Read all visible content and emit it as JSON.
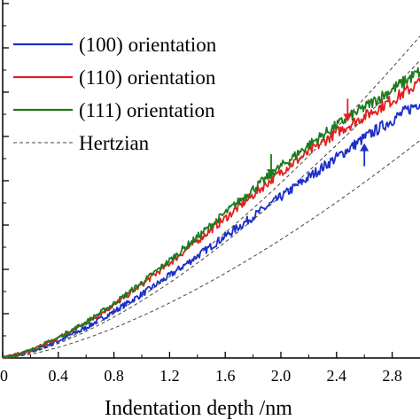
{
  "chart_data": {
    "type": "line",
    "xlabel": "Indentation depth /nm",
    "xlim": [
      0,
      3.0
    ],
    "x_ticks": [
      "0",
      "0.4",
      "0.8",
      "1.2",
      "1.6",
      "2.0",
      "2.4",
      "2.8"
    ],
    "x_tick_values": [
      0,
      0.4,
      0.8,
      1.2,
      1.6,
      2.0,
      2.4,
      2.8
    ],
    "ylim": [
      0,
      1
    ],
    "grid": false,
    "legend_position": "top-left",
    "series": [
      {
        "name": "(100) orientation",
        "color": "#1c2fc8",
        "x": [
          0,
          0.2,
          0.4,
          0.6,
          0.8,
          1.0,
          1.2,
          1.4,
          1.6,
          1.8,
          2.0,
          2.2,
          2.4,
          2.6,
          2.8,
          3.0
        ],
        "y": [
          0,
          0.018,
          0.048,
          0.085,
          0.13,
          0.178,
          0.23,
          0.285,
          0.34,
          0.395,
          0.45,
          0.505,
          0.56,
          0.615,
          0.665,
          0.715
        ]
      },
      {
        "name": "(110) orientation",
        "color": "#e02020",
        "x": [
          0,
          0.2,
          0.4,
          0.6,
          0.8,
          1.0,
          1.2,
          1.4,
          1.6,
          1.8,
          2.0,
          2.2,
          2.4,
          2.6,
          2.8,
          3.0
        ],
        "y": [
          0,
          0.02,
          0.055,
          0.098,
          0.148,
          0.205,
          0.265,
          0.328,
          0.39,
          0.455,
          0.52,
          0.575,
          0.63,
          0.675,
          0.72,
          0.77
        ]
      },
      {
        "name": "(111) orientation",
        "color": "#1d7a1d",
        "x": [
          0,
          0.2,
          0.4,
          0.6,
          0.8,
          1.0,
          1.2,
          1.4,
          1.6,
          1.8,
          2.0,
          2.2,
          2.4,
          2.6,
          2.8,
          3.0
        ],
        "y": [
          0,
          0.021,
          0.057,
          0.1,
          0.152,
          0.21,
          0.272,
          0.338,
          0.405,
          0.472,
          0.535,
          0.595,
          0.65,
          0.7,
          0.75,
          0.8
        ]
      }
    ],
    "hertzian": {
      "name": "Hertzian",
      "color": "#444444",
      "curves": [
        {
          "k": 0.117
        },
        {
          "k": 0.16
        },
        {
          "k": 0.173
        }
      ]
    },
    "arrows": [
      {
        "color": "#1c2fc8",
        "x": 2.6,
        "y": 0.6,
        "direction": "up"
      },
      {
        "color": "#e02020",
        "x": 2.48,
        "y": 0.66,
        "direction": "down"
      },
      {
        "color": "#1d7a1d",
        "x": 1.93,
        "y": 0.505,
        "direction": "down"
      }
    ]
  }
}
